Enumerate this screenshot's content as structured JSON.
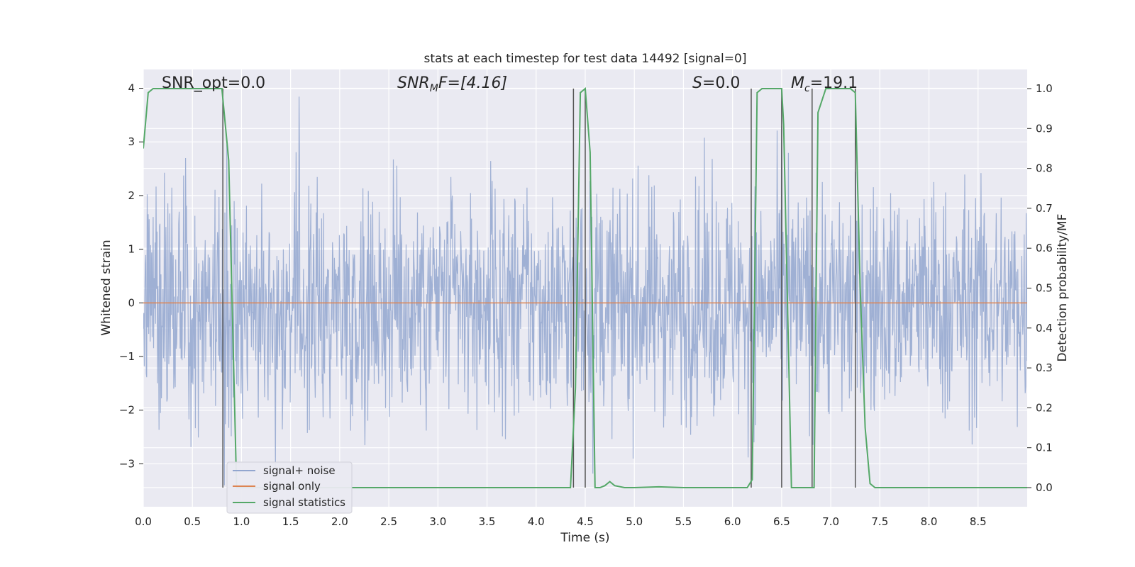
{
  "chart_data": {
    "type": "line",
    "title": "stats at each timestep for test data 14492 [signal=0]",
    "xlabel": "Time (s)",
    "ylabel_left": "Whitened strain",
    "ylabel_right": "Detection probability/MF",
    "xlim": [
      0.0,
      9.0
    ],
    "ylim_left": [
      -3.8,
      4.35
    ],
    "ylim_right": [
      -0.048,
      1.048
    ],
    "x_ticks": [
      "0.0",
      "0.5",
      "1.0",
      "1.5",
      "2.0",
      "2.5",
      "3.0",
      "3.5",
      "4.0",
      "4.5",
      "5.0",
      "5.5",
      "6.0",
      "6.5",
      "7.0",
      "7.5",
      "8.0",
      "8.5"
    ],
    "y_ticks_left": [
      "−3",
      "−2",
      "−1",
      "0",
      "1",
      "2",
      "3",
      "4"
    ],
    "y_ticks_right": [
      "0.0",
      "0.1",
      "0.2",
      "0.3",
      "0.4",
      "0.5",
      "0.6",
      "0.7",
      "0.8",
      "0.9",
      "1.0"
    ],
    "grid": true,
    "legend_position": "lower-left",
    "annotations": {
      "snr_opt": "SNR_opt=0.0",
      "snr_mf_label": "SNR",
      "snr_mf_sub": "M",
      "snr_mf_rest": "F=[4.16]",
      "s_label": "S",
      "s_rest": "=0.0",
      "mc_label": "M",
      "mc_sub": "c",
      "mc_rest": "=19.1"
    },
    "series": [
      {
        "name": "signal+ noise",
        "color": "#92a6cf",
        "axis": "left",
        "description_values": "noise approximately within [-3.4, 4.0] around 0, sampled densely over 0–9 s"
      },
      {
        "name": "signal only",
        "color": "#dd8452",
        "axis": "left",
        "x": [
          0.0,
          9.0
        ],
        "y": [
          0.0,
          0.0
        ]
      },
      {
        "name": "signal statistics",
        "color": "#55a868",
        "axis": "right",
        "x": [
          0.0,
          0.05,
          0.1,
          0.2,
          0.3,
          0.5,
          0.7,
          0.8,
          0.87,
          0.95,
          1.0,
          1.5,
          2.0,
          3.0,
          4.0,
          4.35,
          4.4,
          4.45,
          4.5,
          4.55,
          4.6,
          4.65,
          4.7,
          4.75,
          4.8,
          4.9,
          5.0,
          5.25,
          5.5,
          6.0,
          6.15,
          6.2,
          6.25,
          6.3,
          6.5,
          6.52,
          6.6,
          6.7,
          6.8,
          6.83,
          6.87,
          6.95,
          7.0,
          7.2,
          7.25,
          7.3,
          7.35,
          7.4,
          7.45,
          8.0,
          9.0
        ],
        "y": [
          0.85,
          0.99,
          1.0,
          1.0,
          1.0,
          1.0,
          1.0,
          1.0,
          0.82,
          0.0,
          0.0,
          0.0,
          0.0,
          0.0,
          0.0,
          0.0,
          0.25,
          0.99,
          1.0,
          0.84,
          0.0,
          0.0,
          0.005,
          0.015,
          0.005,
          0.0,
          0.0,
          0.002,
          0.0,
          0.0,
          0.0,
          0.02,
          0.99,
          1.0,
          1.0,
          0.91,
          0.0,
          0.0,
          0.0,
          0.0,
          0.94,
          1.0,
          1.0,
          1.0,
          0.99,
          0.5,
          0.15,
          0.01,
          0.0,
          0.0,
          0.0
        ]
      }
    ],
    "vertical_markers_x": [
      0.81,
      4.38,
      4.5,
      6.19,
      6.5,
      6.81,
      7.25
    ]
  },
  "legend": [
    {
      "label": "signal+ noise",
      "color": "#92a6cf"
    },
    {
      "label": "signal only",
      "color": "#dd8452"
    },
    {
      "label": "signal statistics",
      "color": "#55a868"
    }
  ]
}
